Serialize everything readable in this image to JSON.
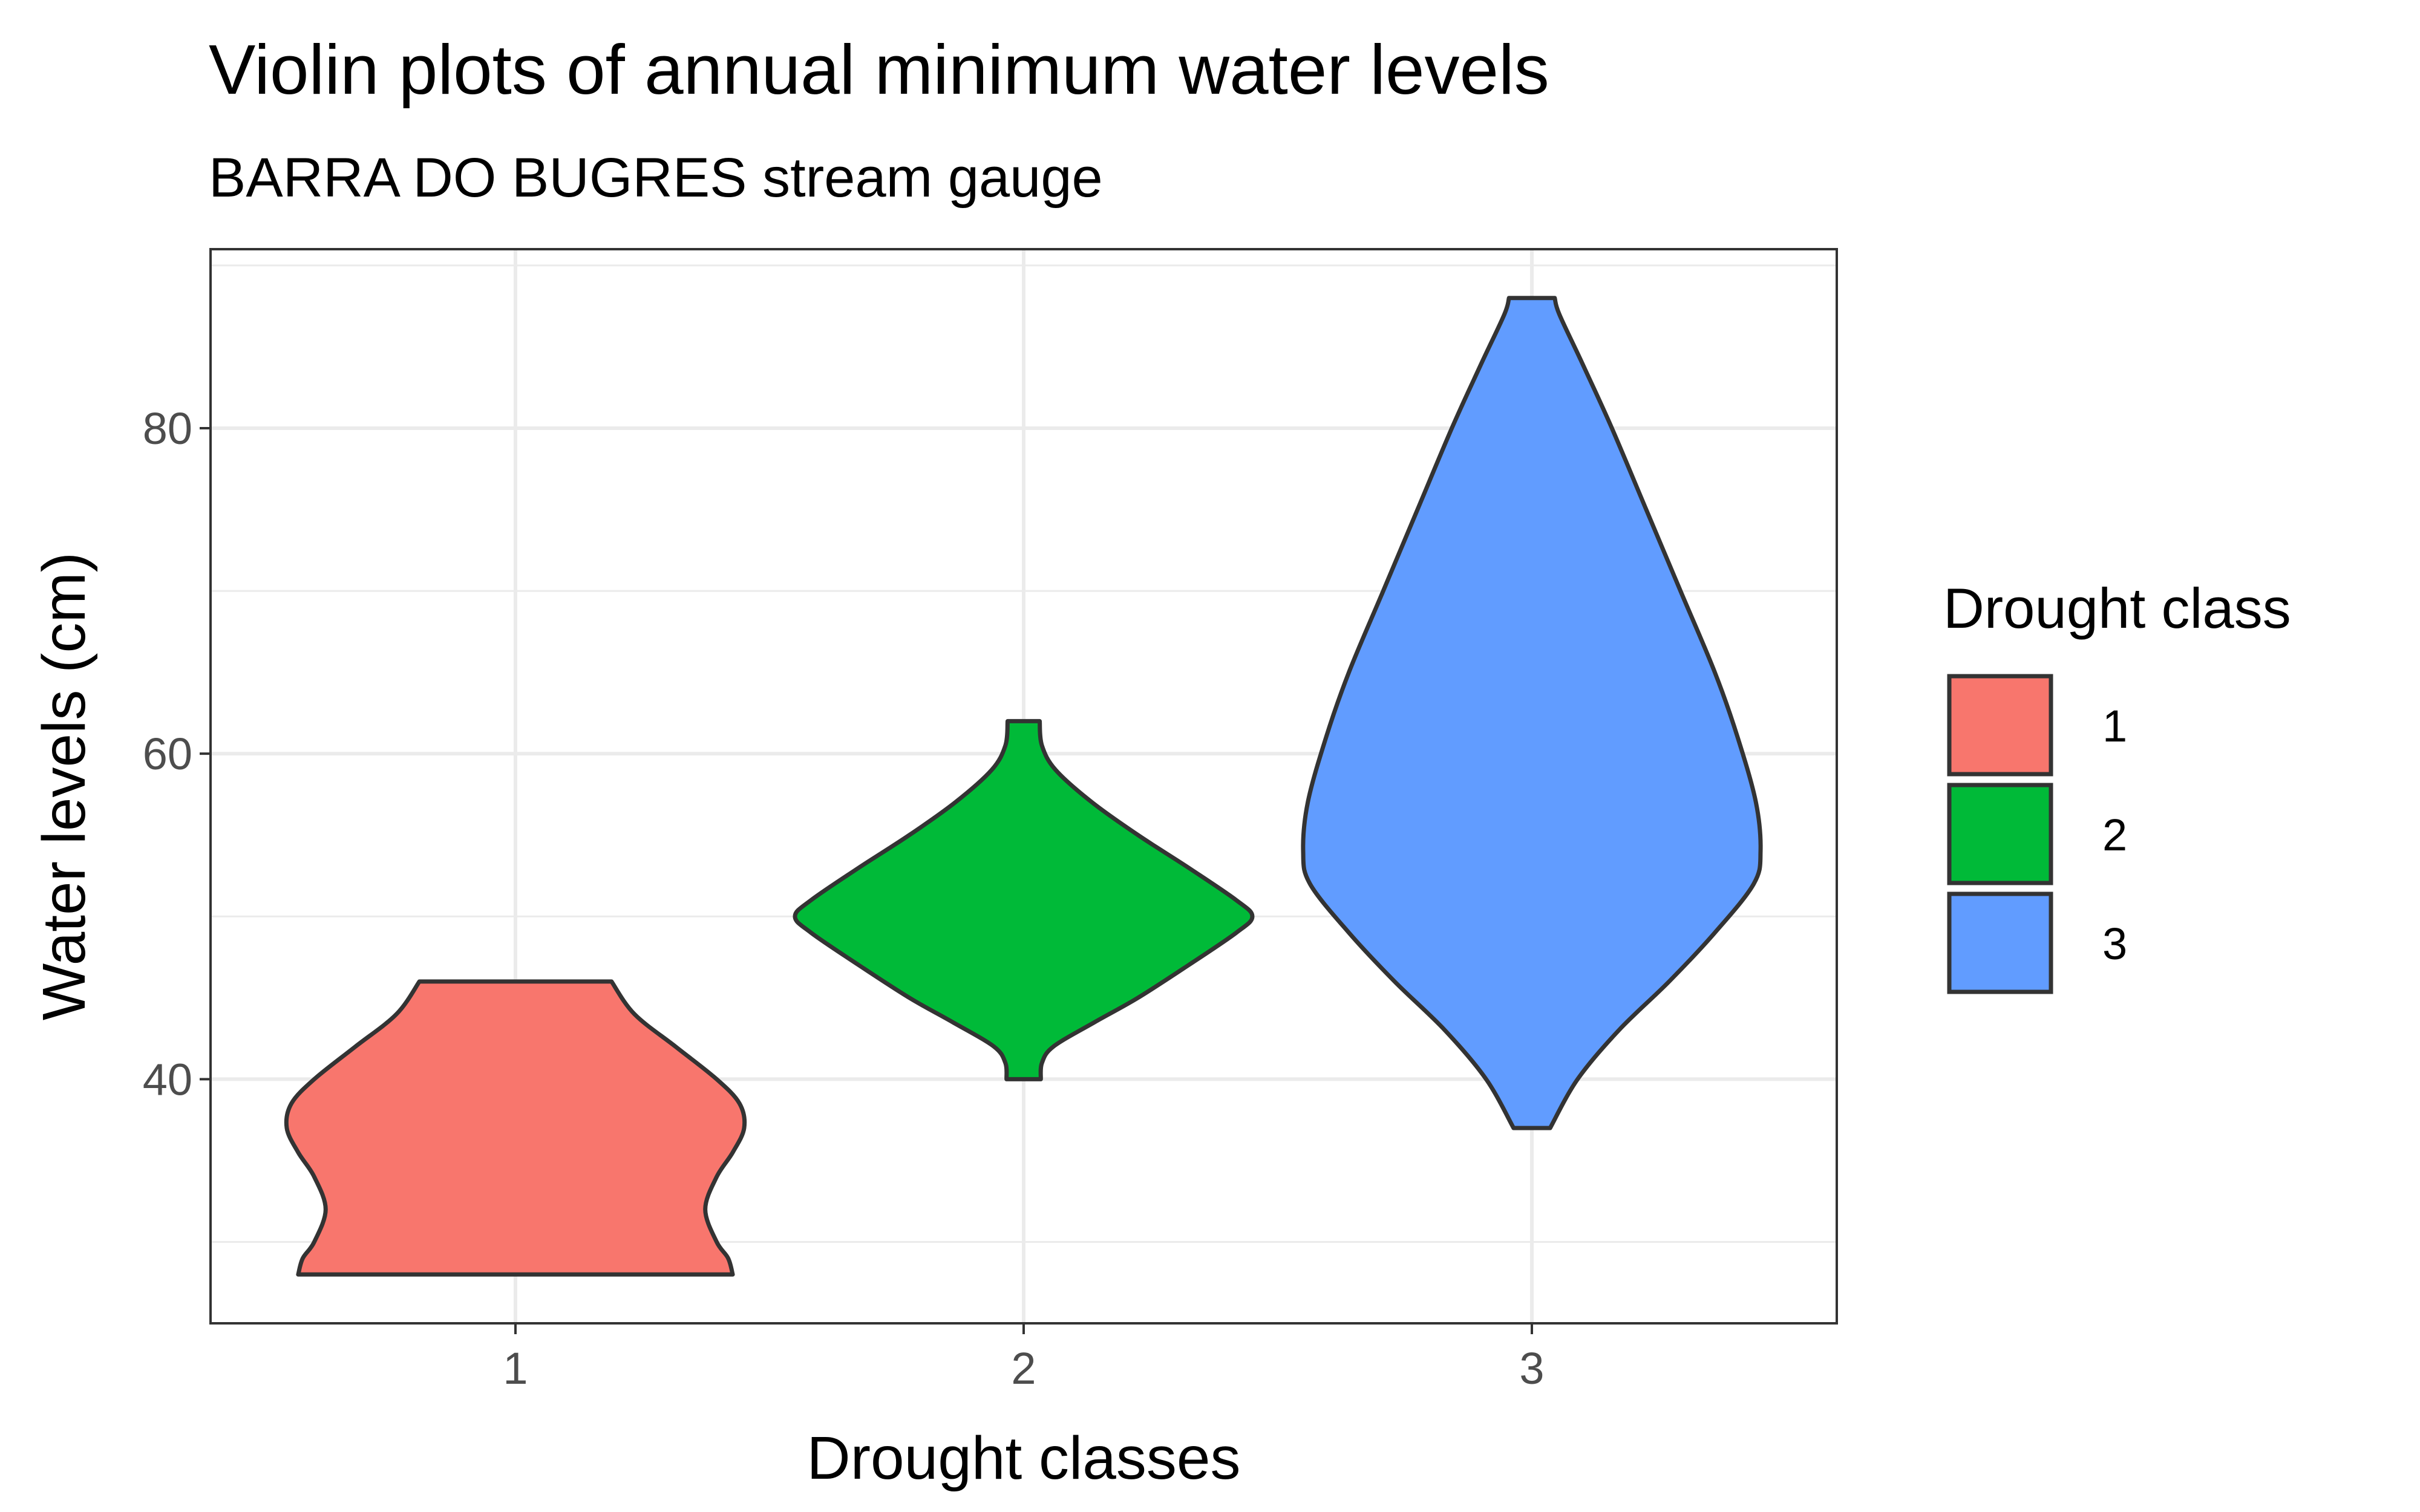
{
  "chart_data": {
    "type": "violin",
    "title": "Violin plots of annual minimum water levels",
    "subtitle": "BARRA DO BUGRES stream gauge",
    "xlabel": "Drought classes",
    "ylabel": "Water levels (cm)",
    "ylim": [
      25,
      91
    ],
    "yticks": [
      40,
      60,
      80
    ],
    "categories": [
      "1",
      "2",
      "3"
    ],
    "grid": true,
    "legend": {
      "title": "Drought class",
      "position": "right",
      "entries": [
        "1",
        "2",
        "3"
      ]
    },
    "series": [
      {
        "class": "1",
        "color": "#F8766D",
        "min": 28,
        "max": 46,
        "density": [
          [
            28,
            0.95
          ],
          [
            29,
            0.93
          ],
          [
            30,
            0.88
          ],
          [
            32,
            0.83
          ],
          [
            34,
            0.88
          ],
          [
            35.5,
            0.95
          ],
          [
            37,
            1.0
          ],
          [
            38.5,
            0.98
          ],
          [
            40,
            0.88
          ],
          [
            42,
            0.7
          ],
          [
            44,
            0.52
          ],
          [
            46,
            0.42
          ]
        ]
      },
      {
        "class": "2",
        "color": "#00BA38",
        "min": 40,
        "max": 62,
        "density": [
          [
            40,
            0.075
          ],
          [
            41,
            0.08
          ],
          [
            42,
            0.13
          ],
          [
            43.5,
            0.31
          ],
          [
            45,
            0.5
          ],
          [
            47,
            0.72
          ],
          [
            49,
            0.93
          ],
          [
            50,
            1.0
          ],
          [
            51,
            0.93
          ],
          [
            53,
            0.72
          ],
          [
            55,
            0.5
          ],
          [
            57,
            0.3
          ],
          [
            59,
            0.14
          ],
          [
            60.5,
            0.08
          ],
          [
            62,
            0.07
          ]
        ]
      },
      {
        "class": "3",
        "color": "#619CFF",
        "min": 37,
        "max": 88,
        "density": [
          [
            37,
            0.08
          ],
          [
            40,
            0.2
          ],
          [
            43,
            0.38
          ],
          [
            46,
            0.6
          ],
          [
            49,
            0.8
          ],
          [
            52,
            0.97
          ],
          [
            54,
            1.0
          ],
          [
            57,
            0.98
          ],
          [
            61,
            0.9
          ],
          [
            65,
            0.8
          ],
          [
            70,
            0.65
          ],
          [
            75,
            0.5
          ],
          [
            80,
            0.35
          ],
          [
            84,
            0.22
          ],
          [
            87,
            0.12
          ],
          [
            88,
            0.1
          ]
        ]
      }
    ]
  }
}
